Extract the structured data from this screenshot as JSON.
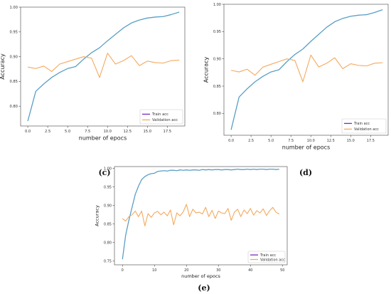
{
  "panels": [
    {
      "caption": "(c)"
    },
    {
      "caption": "(d)"
    },
    {
      "caption": "(e)"
    }
  ],
  "chart_data": [
    {
      "type": "line",
      "xlabel": "number of epocs",
      "ylabel": "Accuracy",
      "xlim": [
        -0.9,
        19.7
      ],
      "ylim": [
        0.76,
        1.0
      ],
      "xticks": [
        0.0,
        2.5,
        5.0,
        7.5,
        10.0,
        12.5,
        15.0,
        17.5
      ],
      "xtick_labels": [
        "0.0",
        "2.5",
        "5.0",
        "7.5",
        "10.0",
        "12.5",
        "15.0",
        "17.5"
      ],
      "yticks": [
        0.8,
        0.85,
        0.9,
        0.95,
        1.0
      ],
      "ytick_labels": [
        "0.80",
        "0.85",
        "0.90",
        "0.95",
        "1.00"
      ],
      "legend_position": "bottom-right",
      "x": [
        0,
        1,
        2,
        3,
        4,
        5,
        6,
        7,
        8,
        9,
        10,
        11,
        12,
        13,
        14,
        15,
        16,
        17,
        18,
        19
      ],
      "series": [
        {
          "name": "Train acc",
          "color": "#5a9fc6",
          "values": [
            0.77,
            0.83,
            0.845,
            0.858,
            0.868,
            0.876,
            0.88,
            0.895,
            0.908,
            0.918,
            0.932,
            0.945,
            0.958,
            0.968,
            0.974,
            0.978,
            0.98,
            0.981,
            0.985,
            0.99
          ]
        },
        {
          "name": "Validation acc",
          "color": "#f5a95f",
          "values": [
            0.879,
            0.876,
            0.881,
            0.87,
            0.885,
            0.89,
            0.895,
            0.9,
            0.897,
            0.858,
            0.907,
            0.885,
            0.892,
            0.902,
            0.882,
            0.891,
            0.888,
            0.887,
            0.892,
            0.893
          ]
        }
      ]
    },
    {
      "type": "line",
      "xlabel": "number of epocs",
      "ylabel": "Accuracy",
      "xlim": [
        -0.9,
        19.7
      ],
      "ylim": [
        0.76,
        1.0
      ],
      "xticks": [
        0.0,
        2.5,
        5.0,
        7.5,
        10.0,
        12.5,
        15.0,
        17.5
      ],
      "xtick_labels": [
        "0.0",
        "2.5",
        "5.0",
        "7.5",
        "10.0",
        "12.5",
        "15.0",
        "17.5"
      ],
      "yticks": [
        0.8,
        0.85,
        0.9,
        0.95,
        1.0
      ],
      "ytick_labels": [
        "0.80",
        "0.85",
        "0.90",
        "0.95",
        "1.00"
      ],
      "legend_position": "bottom-right",
      "x": [
        0,
        1,
        2,
        3,
        4,
        5,
        6,
        7,
        8,
        9,
        10,
        11,
        12,
        13,
        14,
        15,
        16,
        17,
        18,
        19
      ],
      "series": [
        {
          "name": "Train acc",
          "color": "#5a9fc6",
          "values": [
            0.77,
            0.83,
            0.845,
            0.858,
            0.868,
            0.876,
            0.88,
            0.895,
            0.908,
            0.918,
            0.932,
            0.945,
            0.958,
            0.968,
            0.974,
            0.978,
            0.98,
            0.981,
            0.985,
            0.99
          ]
        },
        {
          "name": "Validation acc",
          "color": "#f5a95f",
          "values": [
            0.879,
            0.876,
            0.881,
            0.87,
            0.885,
            0.89,
            0.895,
            0.9,
            0.897,
            0.858,
            0.907,
            0.885,
            0.892,
            0.902,
            0.882,
            0.891,
            0.888,
            0.887,
            0.892,
            0.893
          ]
        }
      ]
    },
    {
      "type": "line",
      "xlabel": "number of epocs",
      "ylabel": "Accuracy",
      "xlim": [
        -2.5,
        51.5
      ],
      "ylim": [
        0.74,
        1.005
      ],
      "xticks": [
        0,
        10,
        20,
        30,
        40,
        50
      ],
      "xtick_labels": [
        "0",
        "10",
        "20",
        "30",
        "40",
        "50"
      ],
      "yticks": [
        0.75,
        0.8,
        0.85,
        0.9,
        0.95,
        1.0
      ],
      "ytick_labels": [
        "0.75",
        "0.80",
        "0.85",
        "0.90",
        "0.95",
        "1.00"
      ],
      "legend_position": "bottom-right",
      "x": [
        0,
        1,
        2,
        3,
        4,
        5,
        6,
        7,
        8,
        9,
        10,
        11,
        12,
        13,
        14,
        15,
        16,
        17,
        18,
        19,
        20,
        21,
        22,
        23,
        24,
        25,
        26,
        27,
        28,
        29,
        30,
        31,
        32,
        33,
        34,
        35,
        36,
        37,
        38,
        39,
        40,
        41,
        42,
        43,
        44,
        45,
        46,
        47,
        48,
        49
      ],
      "series": [
        {
          "name": "Train acc",
          "color": "#5a9fc6",
          "values": [
            0.755,
            0.82,
            0.86,
            0.895,
            0.93,
            0.952,
            0.97,
            0.978,
            0.983,
            0.986,
            0.987,
            0.992,
            0.993,
            0.994,
            0.993,
            0.995,
            0.995,
            0.994,
            0.996,
            0.995,
            0.996,
            0.995,
            0.996,
            0.996,
            0.995,
            0.997,
            0.996,
            0.997,
            0.996,
            0.997,
            0.997,
            0.996,
            0.997,
            0.997,
            0.996,
            0.997,
            0.998,
            0.997,
            0.997,
            0.998,
            0.997,
            0.998,
            0.997,
            0.998,
            0.998,
            0.997,
            0.998,
            0.998,
            0.997,
            0.998
          ]
        },
        {
          "name": "Validation acc",
          "color": "#f5a95f",
          "values": [
            0.865,
            0.858,
            0.87,
            0.875,
            0.885,
            0.87,
            0.885,
            0.845,
            0.878,
            0.868,
            0.88,
            0.884,
            0.875,
            0.882,
            0.872,
            0.888,
            0.848,
            0.88,
            0.872,
            0.883,
            0.903,
            0.87,
            0.89,
            0.88,
            0.882,
            0.877,
            0.895,
            0.87,
            0.887,
            0.865,
            0.885,
            0.88,
            0.878,
            0.892,
            0.86,
            0.882,
            0.89,
            0.87,
            0.888,
            0.878,
            0.892,
            0.874,
            0.886,
            0.88,
            0.891,
            0.873,
            0.886,
            0.895,
            0.882,
            0.877
          ]
        }
      ]
    }
  ]
}
